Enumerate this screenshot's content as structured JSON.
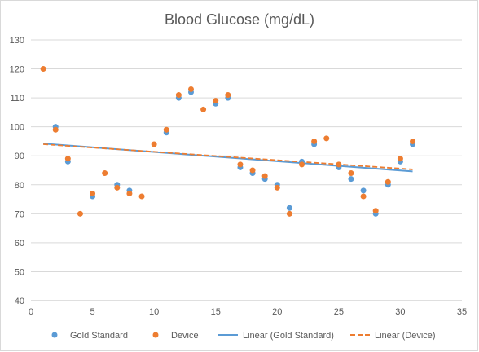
{
  "chart_data": {
    "type": "scatter",
    "title": "Blood Glucose (mg/dL)",
    "xlabel": "",
    "ylabel": "",
    "xlim": [
      0,
      35
    ],
    "ylim": [
      40,
      130
    ],
    "xticks": [
      0,
      5,
      10,
      15,
      20,
      25,
      30,
      35
    ],
    "yticks": [
      40,
      50,
      60,
      70,
      80,
      90,
      100,
      110,
      120,
      130
    ],
    "grid": "horizontal",
    "legend_position": "bottom",
    "series": [
      {
        "name": "Gold Standard",
        "color": "#5b9bd5",
        "marker": "circle",
        "points": [
          [
            2,
            100
          ],
          [
            3,
            88
          ],
          [
            5,
            76
          ],
          [
            7,
            80
          ],
          [
            8,
            78
          ],
          [
            11,
            98
          ],
          [
            12,
            110
          ],
          [
            13,
            112
          ],
          [
            15,
            108
          ],
          [
            16,
            110
          ],
          [
            17,
            86
          ],
          [
            18,
            84
          ],
          [
            19,
            82
          ],
          [
            20,
            80
          ],
          [
            21,
            72
          ],
          [
            22,
            88
          ],
          [
            23,
            94
          ],
          [
            25,
            86
          ],
          [
            26,
            82
          ],
          [
            27,
            78
          ],
          [
            28,
            70
          ],
          [
            29,
            80
          ],
          [
            30,
            88
          ],
          [
            31,
            94
          ]
        ]
      },
      {
        "name": "Device",
        "color": "#ed7d31",
        "marker": "circle",
        "points": [
          [
            1,
            120
          ],
          [
            2,
            99
          ],
          [
            3,
            89
          ],
          [
            4,
            70
          ],
          [
            5,
            77
          ],
          [
            6,
            84
          ],
          [
            7,
            79
          ],
          [
            8,
            77
          ],
          [
            9,
            76
          ],
          [
            10,
            94
          ],
          [
            11,
            99
          ],
          [
            12,
            111
          ],
          [
            13,
            113
          ],
          [
            14,
            106
          ],
          [
            15,
            109
          ],
          [
            16,
            111
          ],
          [
            17,
            87
          ],
          [
            18,
            85
          ],
          [
            19,
            83
          ],
          [
            20,
            79
          ],
          [
            21,
            70
          ],
          [
            22,
            87
          ],
          [
            23,
            95
          ],
          [
            24,
            96
          ],
          [
            25,
            87
          ],
          [
            26,
            84
          ],
          [
            27,
            76
          ],
          [
            28,
            71
          ],
          [
            29,
            81
          ],
          [
            30,
            89
          ],
          [
            31,
            95
          ]
        ]
      },
      {
        "name": "Linear (Gold Standard)",
        "color": "#5b9bd5",
        "type": "trendline",
        "style": "solid",
        "points": [
          [
            1,
            94.2
          ],
          [
            31,
            84.6
          ]
        ]
      },
      {
        "name": "Linear (Device)",
        "color": "#ed7d31",
        "type": "trendline",
        "style": "dashed",
        "points": [
          [
            1,
            94.0
          ],
          [
            31,
            85.3
          ]
        ]
      }
    ]
  }
}
